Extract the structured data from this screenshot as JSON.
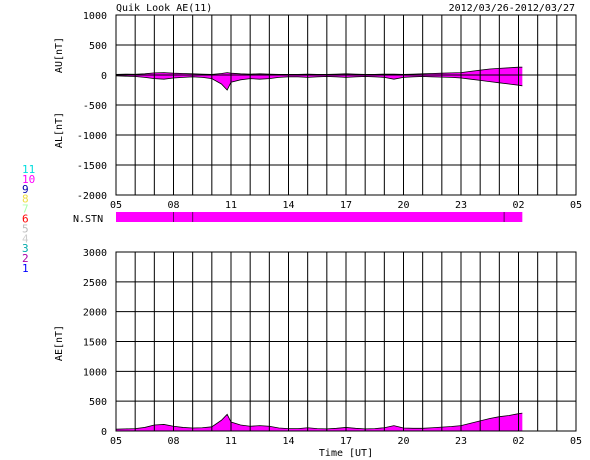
{
  "header": {
    "title": "Quik Look AE(11)",
    "date_range": "2012/03/26-2012/03/27"
  },
  "colors": {
    "fill": "#ff00ff",
    "grid": "#000000",
    "background": "#ffffff"
  },
  "station_bar": {
    "label": "N.STN",
    "start_hour": 0,
    "end_hour": 21.2,
    "markers_hour": [
      3.0,
      4.0,
      20.25
    ]
  },
  "station_legend": [
    {
      "label": "11",
      "color": "#00dddd"
    },
    {
      "label": "10",
      "color": "#ff00ff"
    },
    {
      "label": "9",
      "color": "#0000aa"
    },
    {
      "label": "8",
      "color": "#eedd44"
    },
    {
      "label": "7",
      "color": "#aaffaa"
    },
    {
      "label": "6",
      "color": "#ff0000"
    },
    {
      "label": "5",
      "color": "#bbbbbb"
    },
    {
      "label": "4",
      "color": "#cccccc"
    },
    {
      "label": "3",
      "color": "#00aaaa"
    },
    {
      "label": "2",
      "color": "#aa00aa"
    },
    {
      "label": "1",
      "color": "#0000ff"
    }
  ],
  "chart_data": [
    {
      "type": "area",
      "name": "au-al-panel",
      "ylabels": [
        "AU[nT]",
        "AL[nT]"
      ],
      "xlabel": "",
      "ylim": [
        -2000,
        1000
      ],
      "yticks": [
        1000,
        500,
        0,
        -500,
        -1000,
        -1500,
        -2000
      ],
      "xlim": [
        0,
        24
      ],
      "xtick_hours": [
        0,
        3,
        6,
        9,
        12,
        15,
        18,
        21,
        24
      ],
      "xtick_labels": [
        "05",
        "08",
        "11",
        "14",
        "17",
        "20",
        "23",
        "02",
        "05"
      ],
      "grid": true,
      "x": [
        0,
        0.5,
        1,
        1.5,
        2,
        2.5,
        3,
        3.5,
        4,
        4.5,
        5,
        5.5,
        5.8,
        6,
        6.5,
        7,
        7.5,
        8,
        8.5,
        9,
        9.5,
        10,
        10.5,
        11,
        11.5,
        12,
        12.5,
        13,
        13.5,
        14,
        14.5,
        15,
        15.5,
        16,
        16.5,
        17,
        17.5,
        18,
        18.5,
        19,
        19.5,
        20,
        20.5,
        21,
        21.2
      ],
      "au": [
        10,
        15,
        12,
        20,
        35,
        40,
        30,
        25,
        20,
        15,
        10,
        25,
        40,
        30,
        20,
        15,
        20,
        15,
        10,
        10,
        10,
        15,
        10,
        10,
        15,
        20,
        15,
        10,
        10,
        15,
        15,
        10,
        15,
        20,
        25,
        30,
        35,
        40,
        60,
        80,
        100,
        110,
        120,
        130,
        130
      ],
      "al": [
        -15,
        -20,
        -25,
        -40,
        -60,
        -70,
        -50,
        -40,
        -30,
        -40,
        -60,
        -150,
        -250,
        -120,
        -80,
        -60,
        -70,
        -60,
        -40,
        -30,
        -30,
        -40,
        -30,
        -25,
        -30,
        -40,
        -30,
        -25,
        -30,
        -40,
        -70,
        -40,
        -30,
        -25,
        -30,
        -35,
        -40,
        -50,
        -70,
        -90,
        -110,
        -130,
        -150,
        -170,
        -180
      ]
    },
    {
      "type": "area",
      "name": "ae-panel",
      "ylabel": "AE[nT]",
      "xlabel": "Time [UT]",
      "ylim": [
        0,
        3000
      ],
      "yticks": [
        3000,
        2500,
        2000,
        1500,
        1000,
        500,
        0
      ],
      "xlim": [
        0,
        24
      ],
      "xtick_hours": [
        0,
        3,
        6,
        9,
        12,
        15,
        18,
        21,
        24
      ],
      "xtick_labels": [
        "05",
        "08",
        "11",
        "14",
        "17",
        "20",
        "23",
        "02",
        "05"
      ],
      "grid": true,
      "x": [
        0,
        0.5,
        1,
        1.5,
        2,
        2.5,
        3,
        3.5,
        4,
        4.5,
        5,
        5.5,
        5.8,
        6,
        6.5,
        7,
        7.5,
        8,
        8.5,
        9,
        9.5,
        10,
        10.5,
        11,
        11.5,
        12,
        12.5,
        13,
        13.5,
        14,
        14.5,
        15,
        15.5,
        16,
        16.5,
        17,
        17.5,
        18,
        18.5,
        19,
        19.5,
        20,
        20.5,
        21,
        21.2
      ],
      "ae": [
        30,
        35,
        40,
        60,
        100,
        110,
        80,
        60,
        50,
        55,
        70,
        180,
        280,
        150,
        100,
        80,
        90,
        80,
        50,
        40,
        40,
        55,
        40,
        35,
        45,
        60,
        45,
        35,
        40,
        55,
        90,
        50,
        45,
        45,
        55,
        65,
        75,
        90,
        130,
        170,
        210,
        240,
        260,
        290,
        300
      ]
    }
  ]
}
